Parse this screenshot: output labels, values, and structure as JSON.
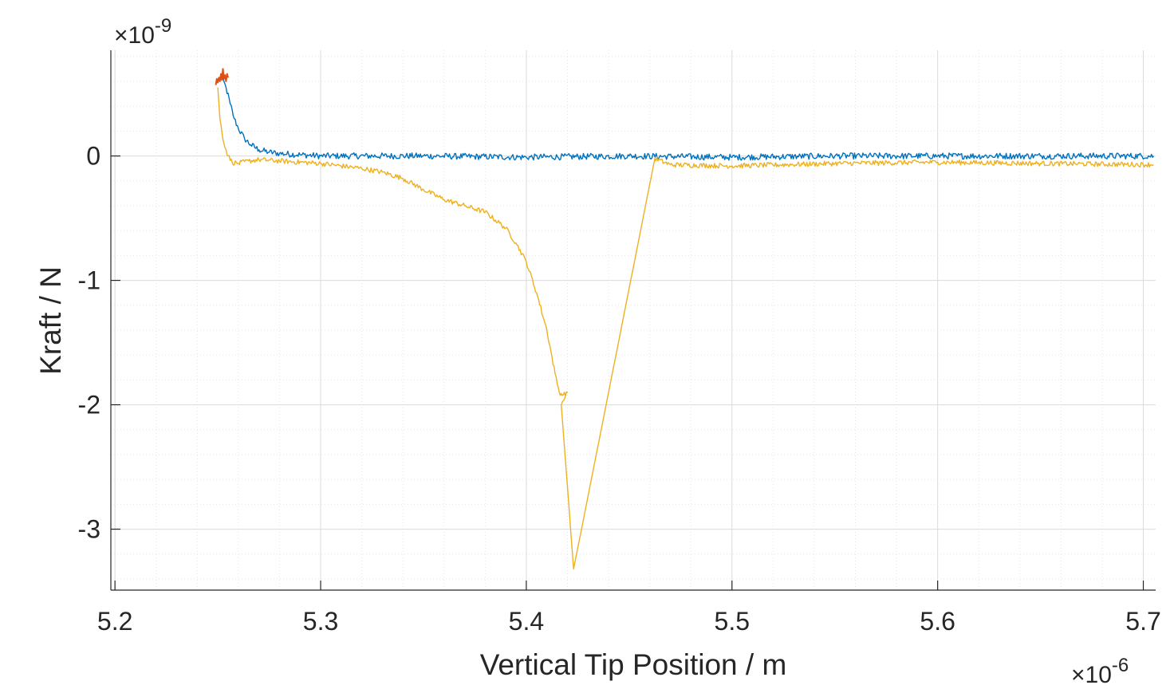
{
  "chart_data": {
    "type": "line",
    "xlabel": "Vertical Tip Position / m",
    "ylabel": "Kraft / N",
    "x_exponent": {
      "base": "×10",
      "power": "-6"
    },
    "y_exponent": {
      "base": "×10",
      "power": "-9"
    },
    "xlim": [
      5.198,
      5.706
    ],
    "ylim": [
      -3.49,
      0.85
    ],
    "xticks": [
      5.2,
      5.3,
      5.4,
      5.5,
      5.6,
      5.7
    ],
    "xtick_labels": [
      "5.2",
      "5.3",
      "5.4",
      "5.5",
      "5.6",
      "5.7"
    ],
    "yticks": [
      0,
      -1,
      -2,
      -3
    ],
    "ytick_labels": [
      "0",
      "-1",
      "-2",
      "-3"
    ],
    "grid": true,
    "minor_grid": true,
    "legend": "none",
    "series": [
      {
        "color": "#0072BD",
        "noise": 0.025,
        "x": [
          5.25,
          5.252,
          5.254,
          5.256,
          5.258,
          5.26,
          5.263,
          5.266,
          5.27,
          5.275,
          5.28,
          5.29,
          5.3,
          5.35,
          5.4,
          5.45,
          5.5,
          5.55,
          5.6,
          5.65,
          5.705
        ],
        "y": [
          0.6,
          0.63,
          0.55,
          0.42,
          0.3,
          0.22,
          0.14,
          0.09,
          0.05,
          0.03,
          0.02,
          0.01,
          0.0,
          0.0,
          -0.01,
          0.0,
          -0.01,
          0.0,
          0.0,
          0.0,
          0.0
        ]
      },
      {
        "color": "#EDB120",
        "noise": 0.02,
        "x": [
          5.25,
          5.251,
          5.253,
          5.255,
          5.257,
          5.26,
          5.265,
          5.27,
          5.28,
          5.3,
          5.32,
          5.33,
          5.34,
          5.35,
          5.36,
          5.37,
          5.38,
          5.39,
          5.395,
          5.4,
          5.405,
          5.41,
          5.414,
          5.416,
          5.418,
          5.42,
          5.419,
          5.417,
          5.423,
          5.4625,
          5.47,
          5.5,
          5.55,
          5.6,
          5.65,
          5.705
        ],
        "y": [
          0.55,
          0.3,
          0.1,
          0.0,
          -0.05,
          -0.06,
          -0.04,
          -0.03,
          -0.04,
          -0.06,
          -0.1,
          -0.13,
          -0.18,
          -0.27,
          -0.35,
          -0.4,
          -0.45,
          -0.58,
          -0.7,
          -0.85,
          -1.1,
          -1.4,
          -1.75,
          -1.9,
          -1.92,
          -1.9,
          -1.93,
          -2.0,
          -3.32,
          -0.02,
          -0.07,
          -0.08,
          -0.06,
          -0.05,
          -0.06,
          -0.07
        ]
      },
      {
        "color": "#D95319",
        "noise": 0.03,
        "x": [
          5.249,
          5.2495,
          5.25,
          5.2505,
          5.251,
          5.2515,
          5.252,
          5.2525,
          5.253,
          5.2535,
          5.254,
          5.2545,
          5.255
        ],
        "y": [
          0.57,
          0.62,
          0.59,
          0.63,
          0.6,
          0.66,
          0.61,
          0.7,
          0.62,
          0.65,
          0.6,
          0.66,
          0.63
        ]
      }
    ]
  }
}
